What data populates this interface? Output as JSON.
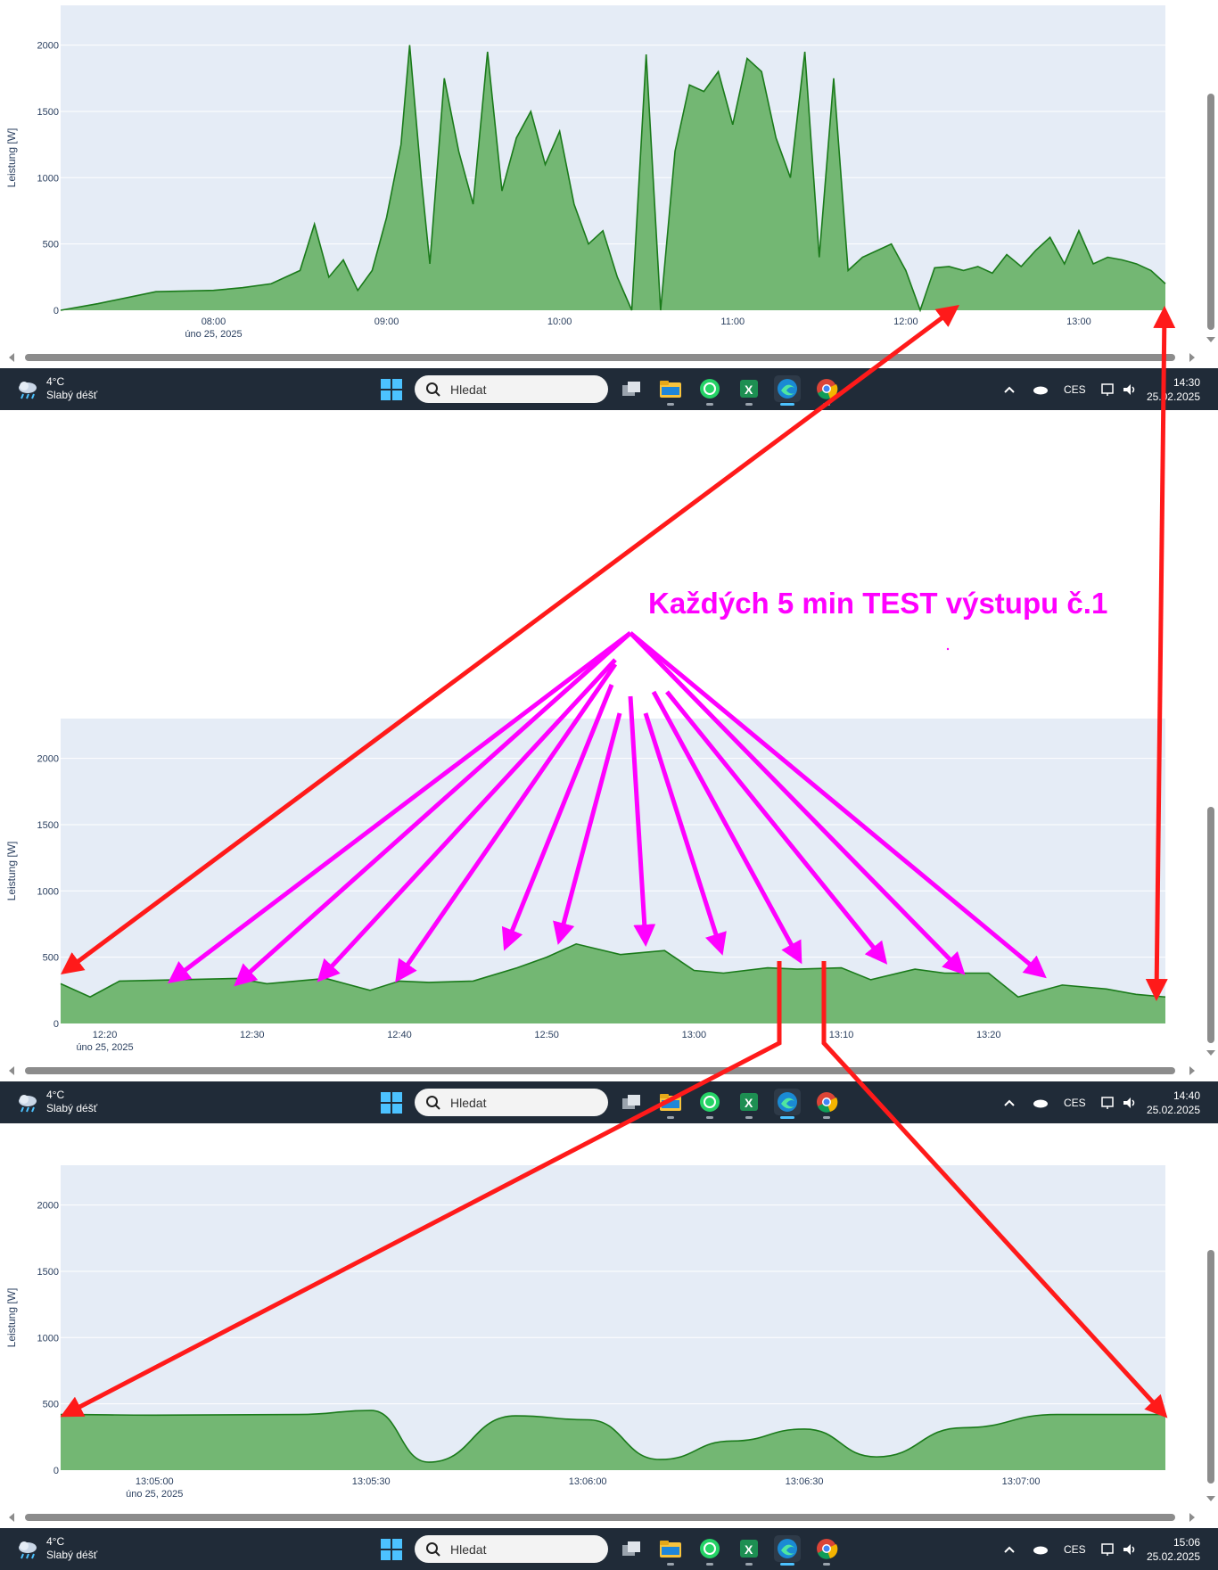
{
  "annotation": {
    "title": "Každých 5 min TEST výstupu č.1"
  },
  "charts": [
    {
      "ylabel": "Leistung [W]",
      "y_ticks": [
        "0",
        "500",
        "1000",
        "1500",
        "2000"
      ],
      "x_ticks": [
        "08:00",
        "09:00",
        "10:00",
        "11:00",
        "12:00",
        "13:00"
      ],
      "date_label": "úno 25, 2025"
    },
    {
      "ylabel": "Leistung [W]",
      "y_ticks": [
        "0",
        "500",
        "1000",
        "1500",
        "2000"
      ],
      "x_ticks": [
        "12:20",
        "12:30",
        "12:40",
        "12:50",
        "13:00",
        "13:10",
        "13:20"
      ],
      "date_label": "úno 25, 2025"
    },
    {
      "ylabel": "Leistung [W]",
      "y_ticks": [
        "0",
        "500",
        "1000",
        "1500",
        "2000"
      ],
      "x_ticks": [
        "13:05:00",
        "13:05:30",
        "13:06:00",
        "13:06:30",
        "13:07:00"
      ],
      "date_label": "úno 25, 2025"
    }
  ],
  "chart_data": [
    {
      "type": "area",
      "ylabel": "Leistung [W]",
      "ylim": [
        0,
        2300
      ],
      "x": [
        "07:07",
        "07:20",
        "07:40",
        "08:00",
        "08:10",
        "08:20",
        "08:30",
        "08:35",
        "08:40",
        "08:45",
        "08:50",
        "08:55",
        "09:00",
        "09:05",
        "09:08",
        "09:12",
        "09:15",
        "09:20",
        "09:25",
        "09:30",
        "09:35",
        "09:40",
        "09:45",
        "09:50",
        "09:55",
        "10:00",
        "10:05",
        "10:10",
        "10:15",
        "10:20",
        "10:25",
        "10:30",
        "10:35",
        "10:40",
        "10:45",
        "10:50",
        "10:55",
        "11:00",
        "11:05",
        "11:10",
        "11:15",
        "11:20",
        "11:25",
        "11:30",
        "11:35",
        "11:40",
        "11:45",
        "11:50",
        "11:55",
        "12:00",
        "12:05",
        "12:10",
        "12:15",
        "12:20",
        "12:25",
        "12:30",
        "12:35",
        "12:40",
        "12:45",
        "12:50",
        "12:55",
        "13:00",
        "13:05",
        "13:10",
        "13:15",
        "13:20",
        "13:25",
        "13:30"
      ],
      "values": [
        0,
        50,
        140,
        150,
        170,
        200,
        300,
        650,
        250,
        380,
        150,
        300,
        700,
        1250,
        2000,
        1000,
        350,
        1750,
        1200,
        800,
        1950,
        900,
        1300,
        1500,
        1100,
        1350,
        800,
        500,
        600,
        250,
        0,
        1930,
        0,
        1200,
        1700,
        1650,
        1800,
        1400,
        1900,
        1800,
        1300,
        1000,
        1950,
        400,
        1750,
        300,
        400,
        450,
        500,
        300,
        0,
        320,
        330,
        300,
        330,
        280,
        420,
        330,
        450,
        550,
        350,
        600,
        350,
        400,
        380,
        350,
        300,
        200
      ],
      "series": [
        {
          "name": "",
          "color": "#1a7a1a",
          "fill": "#73b773"
        }
      ]
    },
    {
      "type": "area",
      "ylabel": "Leistung [W]",
      "ylim": [
        0,
        2300
      ],
      "x": [
        "12:17",
        "12:19",
        "12:21",
        "12:25",
        "12:29",
        "12:31",
        "12:35",
        "12:38",
        "12:40",
        "12:42",
        "12:45",
        "12:48",
        "12:50",
        "12:52",
        "12:55",
        "12:58",
        "13:00",
        "13:02",
        "13:05",
        "13:07",
        "13:10",
        "13:12",
        "13:15",
        "13:17",
        "13:20",
        "13:22",
        "13:25",
        "13:28",
        "13:30",
        "13:32"
      ],
      "values": [
        300,
        200,
        320,
        330,
        340,
        300,
        340,
        250,
        320,
        310,
        320,
        420,
        500,
        600,
        520,
        550,
        400,
        380,
        420,
        410,
        420,
        330,
        410,
        380,
        380,
        200,
        290,
        260,
        220,
        200
      ],
      "series": [
        {
          "name": "",
          "color": "#1a7a1a",
          "fill": "#73b773"
        }
      ]
    },
    {
      "type": "area",
      "ylabel": "Leistung [W]",
      "ylim": [
        0,
        2300
      ],
      "x": [
        "13:04:47",
        "13:05:00",
        "13:05:20",
        "13:05:30",
        "13:05:38",
        "13:05:50",
        "13:06:00",
        "13:06:10",
        "13:06:20",
        "13:06:30",
        "13:06:40",
        "13:06:52",
        "13:07:05",
        "13:07:20"
      ],
      "values": [
        420,
        415,
        420,
        450,
        60,
        410,
        380,
        80,
        220,
        310,
        100,
        320,
        420,
        420
      ],
      "series": [
        {
          "name": "",
          "color": "#1a7a1a",
          "fill": "#73b773"
        }
      ]
    }
  ],
  "taskbars": [
    {
      "temp": "4°C",
      "weather": "Slabý déšť",
      "search_placeholder": "Hledat",
      "lang": "CES",
      "time": "14:30",
      "date": "25.02.2025"
    },
    {
      "temp": "4°C",
      "weather": "Slabý déšť",
      "search_placeholder": "Hledat",
      "lang": "CES",
      "time": "14:40",
      "date": "25.02.2025"
    },
    {
      "temp": "4°C",
      "weather": "Slabý déšť",
      "search_placeholder": "Hledat",
      "lang": "CES",
      "time": "15:06",
      "date": "25.02.2025"
    }
  ],
  "icons": {
    "weather": "cloud-rain-icon",
    "start": "windows-start-icon",
    "search": "search-icon",
    "apps": [
      "task-view-icon",
      "file-explorer-icon",
      "whatsapp-icon",
      "excel-icon",
      "edge-icon",
      "chrome-icon"
    ],
    "tray": [
      "chevron-up-icon",
      "onedrive-icon",
      "network-icon",
      "volume-icon"
    ]
  },
  "colors": {
    "plot_bg": "#e5ecf6",
    "line": "#1a7a1a",
    "fill": "#73b773",
    "arrow_red": "#ff1a1a",
    "arrow_magenta": "#ff00ff",
    "taskbar": "#202b38"
  }
}
